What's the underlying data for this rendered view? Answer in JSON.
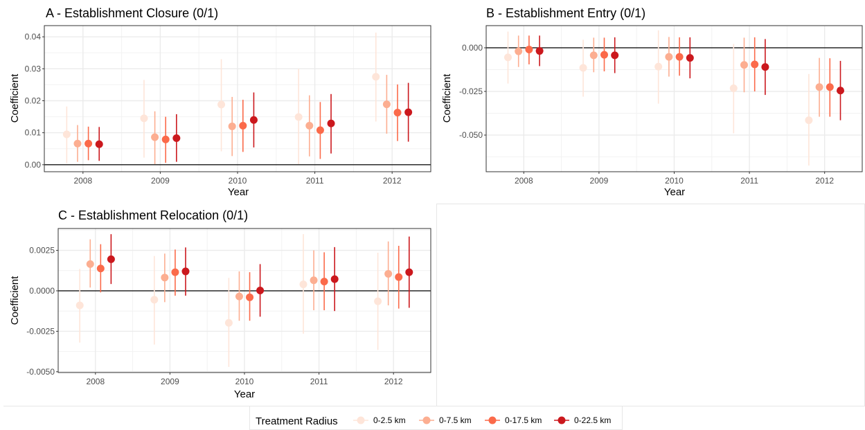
{
  "legend": {
    "title": "Treatment Radius",
    "entries": [
      "0-2.5 km",
      "0-7.5 km",
      "0-17.5 km",
      "0-22.5 km"
    ]
  },
  "colors": [
    "#fee5d9",
    "#fcae91",
    "#fb6a4a",
    "#cb181d"
  ],
  "chart_data": [
    {
      "type": "scatter",
      "title": "A - Establishment Closure (0/1)",
      "xlabel": "Year",
      "ylabel": "Coefficient",
      "categories": [
        "2008",
        "2009",
        "2010",
        "2011",
        "2012"
      ],
      "ylim": [
        -0.0022,
        0.0435
      ],
      "yticks": [
        0.0,
        0.01,
        0.02,
        0.03,
        0.04
      ],
      "ytick_labels": [
        "0.00",
        "0.01",
        "0.02",
        "0.03",
        "0.04"
      ],
      "grid": true,
      "series": [
        {
          "name": "0-2.5 km",
          "values": [
            0.0095,
            0.0145,
            0.0188,
            0.0149,
            0.0275
          ],
          "lower": [
            0.0005,
            0.0022,
            0.0042,
            0.0002,
            0.0135
          ],
          "upper": [
            0.0182,
            0.0265,
            0.033,
            0.03,
            0.0413
          ]
        },
        {
          "name": "0-7.5 km",
          "values": [
            0.0066,
            0.0086,
            0.012,
            0.0122,
            0.0189
          ],
          "lower": [
            0.0009,
            0.0002,
            0.0027,
            0.0026,
            0.0097
          ],
          "upper": [
            0.0124,
            0.0167,
            0.0212,
            0.0217,
            0.0281
          ]
        },
        {
          "name": "0-17.5 km",
          "values": [
            0.0066,
            0.0079,
            0.0122,
            0.0108,
            0.0163
          ],
          "lower": [
            0.0014,
            0.0006,
            0.004,
            0.0018,
            0.0074
          ],
          "upper": [
            0.0119,
            0.015,
            0.0203,
            0.0196,
            0.0251
          ]
        },
        {
          "name": "0-22.5 km",
          "values": [
            0.0064,
            0.0083,
            0.014,
            0.0129,
            0.0164
          ],
          "lower": [
            0.0012,
            0.0009,
            0.0054,
            0.0035,
            0.0072
          ],
          "upper": [
            0.0118,
            0.0158,
            0.0226,
            0.0221,
            0.0256
          ]
        }
      ]
    },
    {
      "type": "scatter",
      "title": "B - Establishment Entry (0/1)",
      "xlabel": "Year",
      "ylabel": "Coefficient",
      "categories": [
        "2008",
        "2009",
        "2010",
        "2011",
        "2012"
      ],
      "ylim": [
        -0.071,
        0.0127
      ],
      "yticks": [
        0.0,
        -0.025,
        -0.05
      ],
      "ytick_labels": [
        "0.000",
        "-0.025",
        "-0.050"
      ],
      "grid": true,
      "series": [
        {
          "name": "0-2.5 km",
          "values": [
            -0.0055,
            -0.0115,
            -0.0108,
            -0.0232,
            -0.0415
          ],
          "lower": [
            -0.0205,
            -0.028,
            -0.032,
            -0.049,
            -0.0675
          ],
          "upper": [
            0.0093,
            0.0046,
            0.01,
            0.0022,
            -0.015
          ]
        },
        {
          "name": "0-7.5 km",
          "values": [
            -0.002,
            -0.0043,
            -0.0052,
            -0.0098,
            -0.0225
          ],
          "lower": [
            -0.011,
            -0.014,
            -0.0165,
            -0.0255,
            -0.0395
          ],
          "upper": [
            0.007,
            0.0058,
            0.0062,
            0.0058,
            -0.0058
          ]
        },
        {
          "name": "0-17.5 km",
          "values": [
            -0.001,
            -0.004,
            -0.0052,
            -0.0095,
            -0.0225
          ],
          "lower": [
            -0.0095,
            -0.0135,
            -0.016,
            -0.025,
            -0.0395
          ],
          "upper": [
            0.007,
            0.0058,
            0.006,
            0.006,
            -0.006
          ]
        },
        {
          "name": "0-22.5 km",
          "values": [
            -0.0018,
            -0.0043,
            -0.0058,
            -0.011,
            -0.0245
          ],
          "lower": [
            -0.0105,
            -0.0145,
            -0.0175,
            -0.027,
            -0.0415
          ],
          "upper": [
            0.007,
            0.006,
            0.006,
            0.005,
            -0.0075
          ]
        }
      ]
    },
    {
      "type": "scatter",
      "title": "C - Establishment Relocation (0/1)",
      "xlabel": "Year",
      "ylabel": "Coefficient",
      "categories": [
        "2008",
        "2009",
        "2010",
        "2011",
        "2012"
      ],
      "ylim": [
        -0.00505,
        0.00385
      ],
      "yticks": [
        0.0025,
        0.0,
        -0.0025,
        -0.005
      ],
      "ytick_labels": [
        "0.0025",
        "0.0000",
        "-0.0025",
        "-0.0050"
      ],
      "grid": true,
      "series": [
        {
          "name": "0-2.5 km",
          "values": [
            -0.0009,
            -0.00055,
            -0.00198,
            0.0004,
            -0.00065
          ],
          "lower": [
            -0.0032,
            -0.00332,
            -0.0047,
            -0.00265,
            -0.00365
          ],
          "upper": [
            0.00135,
            0.00215,
            0.0008,
            0.0035,
            0.00235
          ]
        },
        {
          "name": "0-7.5 km",
          "values": [
            0.00165,
            0.00082,
            -0.00035,
            0.00065,
            0.00105
          ],
          "lower": [
            0.0002,
            -0.0007,
            -0.00185,
            -0.0012,
            -0.0009
          ],
          "upper": [
            0.00318,
            0.0023,
            0.0012,
            0.0025,
            0.00305
          ]
        },
        {
          "name": "0-17.5 km",
          "values": [
            0.00138,
            0.00115,
            -0.0004,
            0.00057,
            0.00085
          ],
          "lower": [
            -0.0001,
            -0.0003,
            -0.00185,
            -0.0012,
            -0.0011
          ],
          "upper": [
            0.00288,
            0.00255,
            0.00115,
            0.00238,
            0.00278
          ]
        },
        {
          "name": "0-22.5 km",
          "values": [
            0.00195,
            0.0012,
            2e-05,
            0.00072,
            0.00115
          ],
          "lower": [
            0.00042,
            -0.0003,
            -0.0016,
            -0.00125,
            -0.00105
          ],
          "upper": [
            0.0035,
            0.00268,
            0.00165,
            0.0027,
            0.00335
          ]
        }
      ]
    }
  ]
}
